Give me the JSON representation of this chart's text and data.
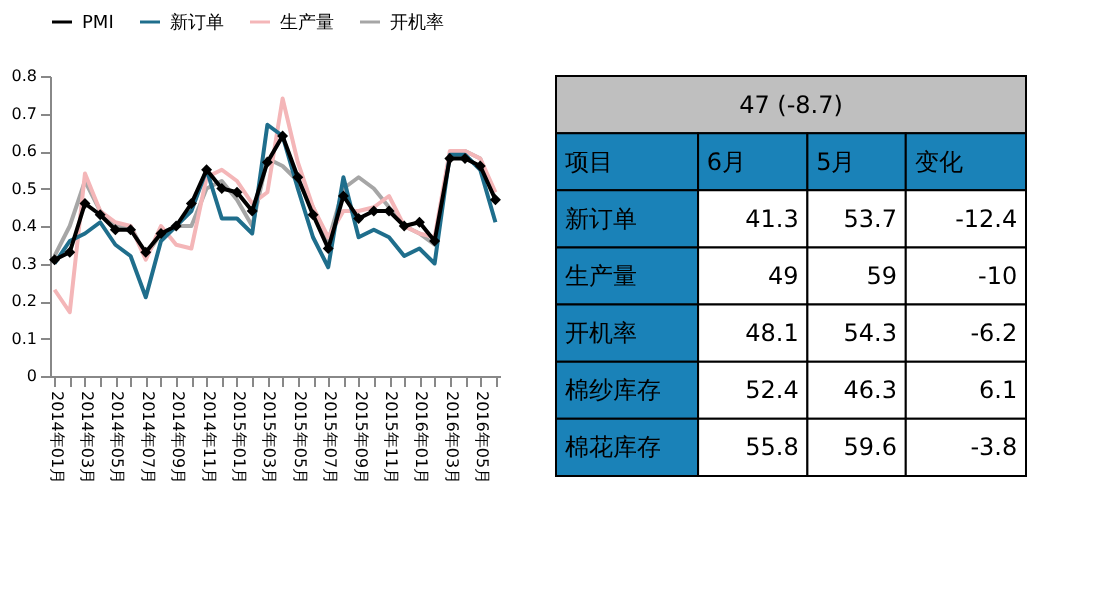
{
  "chart_data": [
    {
      "type": "line",
      "categories": [
        "2014年01月",
        null,
        "2014年03月",
        null,
        "2014年05月",
        null,
        "2014年07月",
        null,
        "2014年09月",
        null,
        "2014年11月",
        null,
        "2015年01月",
        null,
        "2015年03月",
        null,
        "2015年05月",
        null,
        "2015年07月",
        null,
        "2015年09月",
        null,
        "2015年11月",
        null,
        "2016年01月",
        null,
        "2016年03月",
        null,
        "2016年05月",
        null
      ],
      "series": [
        {
          "name": "PMI",
          "color": "#000000",
          "marker": "diamond",
          "values": [
            0.31,
            0.33,
            0.46,
            0.43,
            0.39,
            0.39,
            0.33,
            0.38,
            0.4,
            0.46,
            0.55,
            0.5,
            0.49,
            0.44,
            0.57,
            0.64,
            0.53,
            0.43,
            0.34,
            0.48,
            0.42,
            0.44,
            0.44,
            0.4,
            0.41,
            0.36,
            0.58,
            0.58,
            0.56,
            0.47
          ]
        },
        {
          "name": "新订单",
          "color": "#1f6e8c",
          "marker": "none",
          "values": [
            0.3,
            0.36,
            0.38,
            0.41,
            0.35,
            0.32,
            0.21,
            0.36,
            0.4,
            0.44,
            0.55,
            0.42,
            0.42,
            0.38,
            0.67,
            0.64,
            0.5,
            0.37,
            0.29,
            0.53,
            0.37,
            0.39,
            0.37,
            0.32,
            0.34,
            0.3,
            0.59,
            0.59,
            0.55,
            0.41
          ]
        },
        {
          "name": "生产量",
          "color": "#f4b6b8",
          "marker": "none",
          "values": [
            0.23,
            0.17,
            0.54,
            0.44,
            0.41,
            0.4,
            0.31,
            0.4,
            0.35,
            0.34,
            0.53,
            0.55,
            0.52,
            0.46,
            0.49,
            0.74,
            0.57,
            0.45,
            0.37,
            0.44,
            0.44,
            0.45,
            0.48,
            0.4,
            0.38,
            0.37,
            0.6,
            0.6,
            0.58,
            0.49
          ]
        },
        {
          "name": "开机率",
          "color": "#a6a6a6",
          "marker": "none",
          "values": [
            0.32,
            0.4,
            0.52,
            0.44,
            0.4,
            0.4,
            0.32,
            0.38,
            0.4,
            0.4,
            0.5,
            0.52,
            0.47,
            0.4,
            0.58,
            0.56,
            0.52,
            0.45,
            0.36,
            0.5,
            0.53,
            0.5,
            0.45,
            0.4,
            0.38,
            0.35,
            0.59,
            0.6,
            0.58,
            0.47
          ]
        }
      ],
      "ylim": [
        0,
        0.8
      ],
      "yticks": [
        0,
        0.1,
        0.2,
        0.3,
        0.4,
        0.5,
        0.6,
        0.7,
        0.8
      ],
      "grid": false,
      "legend": "top",
      "line_style": "solid"
    },
    {
      "type": "other",
      "title": "47 (-8.7)",
      "categories": [
        "项目",
        "6月",
        "5月",
        "变化"
      ],
      "y_categories": [
        "新订单",
        "生产量",
        "开机率",
        "棉纱库存",
        "棉花库存"
      ],
      "cell_labels": [
        [
          "41.3",
          "53.7",
          "-12.4"
        ],
        [
          "49",
          "59",
          "-10"
        ],
        [
          "48.1",
          "54.3",
          "-6.2"
        ],
        [
          "52.4",
          "46.3",
          "6.1"
        ],
        [
          "55.8",
          "59.6",
          "-3.8"
        ]
      ]
    }
  ]
}
